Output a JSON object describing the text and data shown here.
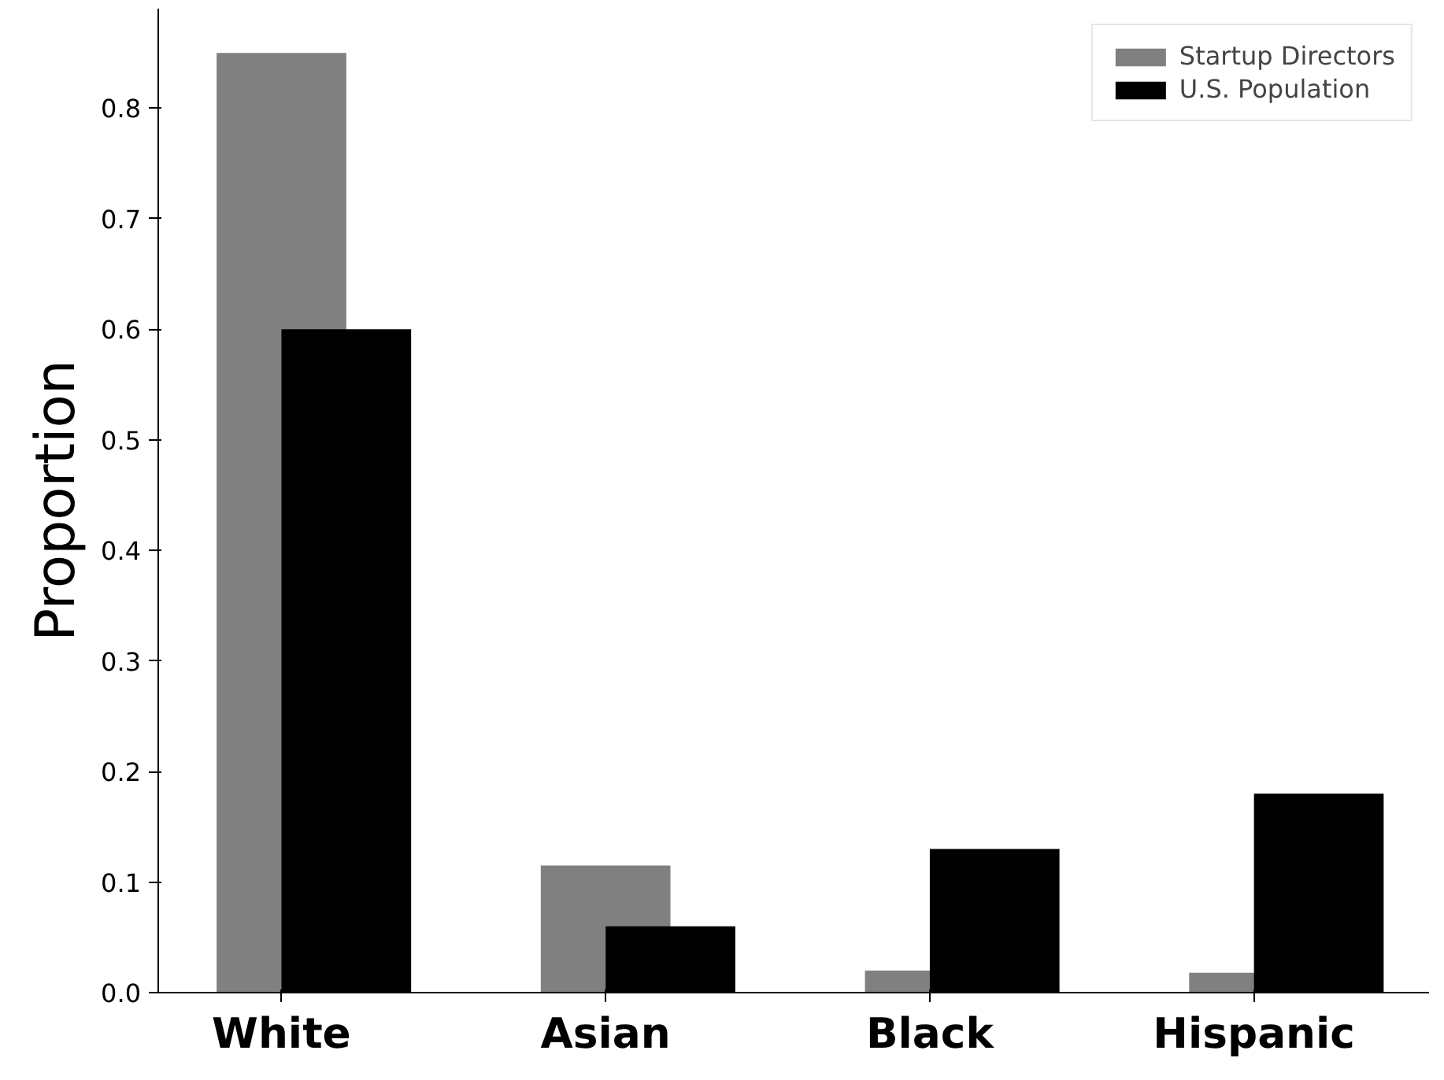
{
  "chart_data": {
    "type": "bar",
    "ylabel": "Proportion",
    "categories": [
      "White",
      "Asian",
      "Black",
      "Hispanic"
    ],
    "series": [
      {
        "name": "Startup Directors",
        "color": "#808080",
        "values": [
          0.85,
          0.115,
          0.02,
          0.018
        ]
      },
      {
        "name": "U.S. Population",
        "color": "#000000",
        "values": [
          0.6,
          0.06,
          0.13,
          0.18
        ]
      }
    ],
    "ylim": [
      0,
      0.89
    ],
    "yticks": [
      {
        "value": 0,
        "label": "0.0"
      },
      0.1,
      0.2,
      0.3,
      0.4,
      0.5,
      0.6,
      0.7,
      0.8
    ],
    "grid": false,
    "legend": "top right"
  }
}
